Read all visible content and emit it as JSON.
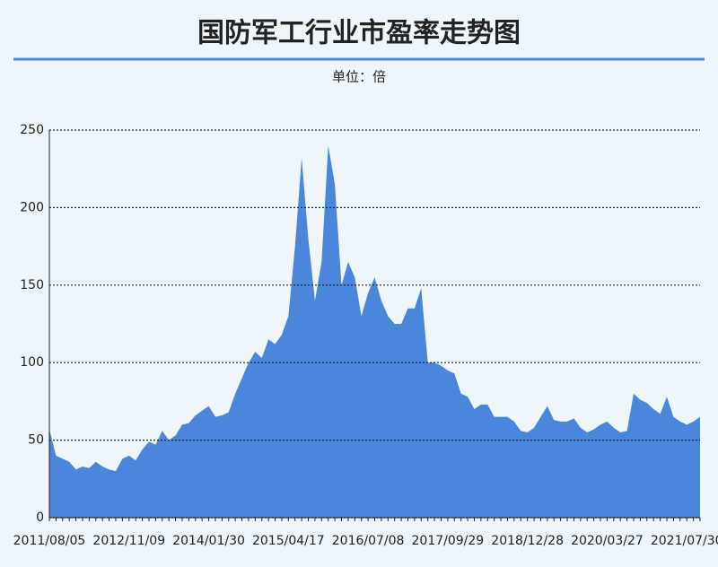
{
  "chart_data": {
    "type": "area",
    "title": "国防军工行业市盈率走势图",
    "subtitle": "单位：倍",
    "color": "#4a86db",
    "categories": [
      "2011/08/05",
      null,
      null,
      null,
      null,
      null,
      null,
      null,
      null,
      null,
      null,
      null,
      "2012/11/09",
      null,
      null,
      null,
      null,
      null,
      null,
      null,
      null,
      null,
      null,
      null,
      "2014/01/30",
      null,
      null,
      null,
      null,
      null,
      null,
      null,
      null,
      null,
      null,
      null,
      "2015/04/17",
      null,
      null,
      null,
      null,
      null,
      null,
      null,
      null,
      null,
      null,
      null,
      "2016/07/08",
      null,
      null,
      null,
      null,
      null,
      null,
      null,
      null,
      null,
      null,
      null,
      "2017/09/29",
      null,
      null,
      null,
      null,
      null,
      null,
      null,
      null,
      null,
      null,
      null,
      "2018/12/28",
      null,
      null,
      null,
      null,
      null,
      null,
      null,
      null,
      null,
      null,
      null,
      "2020/03/27",
      null,
      null,
      null,
      null,
      null,
      null,
      null,
      null,
      null,
      null,
      null,
      "2021/07/30",
      null,
      null
    ],
    "values": [
      57,
      40,
      38,
      36,
      31,
      33,
      32,
      36,
      33,
      31,
      30,
      38,
      40,
      37,
      44,
      49,
      47,
      56,
      50,
      53,
      60,
      61,
      66,
      69,
      72,
      65,
      66,
      68,
      80,
      90,
      100,
      107,
      103,
      115,
      112,
      118,
      130,
      175,
      232,
      180,
      140,
      165,
      240,
      215,
      150,
      165,
      155,
      130,
      145,
      155,
      140,
      130,
      125,
      125,
      135,
      135,
      148,
      100,
      100,
      98,
      95,
      93,
      80,
      78,
      70,
      73,
      73,
      65,
      65,
      65,
      62,
      56,
      55,
      58,
      65,
      72,
      63,
      62,
      62,
      64,
      58,
      55,
      57,
      60,
      62,
      58,
      55,
      56,
      80,
      76,
      74,
      70,
      67,
      78,
      65,
      62,
      60,
      62,
      65
    ],
    "ylim": [
      0,
      250
    ],
    "yticks": [
      0,
      50,
      100,
      150,
      200,
      250
    ],
    "grid": true
  }
}
